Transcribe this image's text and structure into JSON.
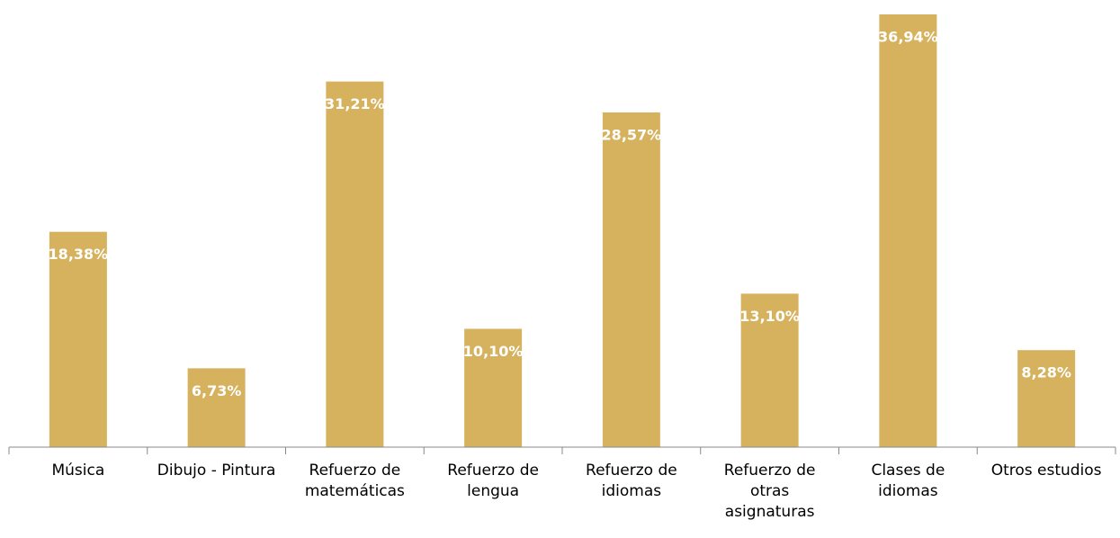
{
  "chart_data": {
    "type": "bar",
    "categories": [
      "Música",
      "Dibujo - Pintura",
      "Refuerzo de matemáticas",
      "Refuerzo de lengua",
      "Refuerzo de idiomas",
      "Refuerzo de otras asignaturas",
      "Clases de idiomas",
      "Otros estudios"
    ],
    "values": [
      18.38,
      6.73,
      31.21,
      10.1,
      28.57,
      13.1,
      36.94,
      8.28
    ],
    "value_labels": [
      "18,38%",
      "6,73%",
      "31,21%",
      "10,10%",
      "28,57%",
      "13,10%",
      "36,94%",
      "8,28%"
    ],
    "color": "#d6b25e"
  }
}
